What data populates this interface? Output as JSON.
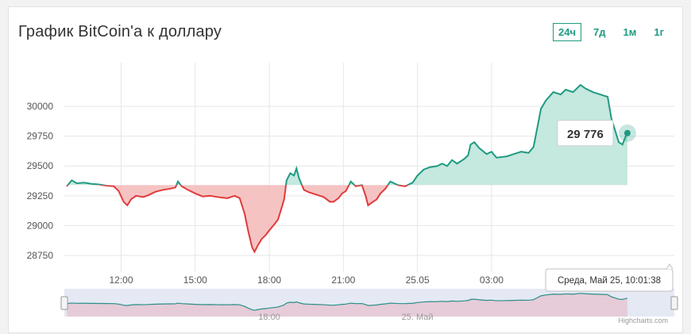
{
  "header": {
    "title": "График BitCoin'а к доллару",
    "ranges": [
      {
        "label": "24ч",
        "active": true
      },
      {
        "label": "7д",
        "active": false
      },
      {
        "label": "1м",
        "active": false
      },
      {
        "label": "1г",
        "active": false
      }
    ]
  },
  "colors": {
    "up_line": "#1f9a82",
    "up_fill": "#bfe6dc",
    "down_line": "#e03b3b",
    "down_fill": "#f5bcbc",
    "grid": "#e6e6e6",
    "navigator_fill": "#d9dff0",
    "navigator_line": "#2a8f86"
  },
  "chart_data": {
    "type": "area",
    "baseline": 29340,
    "ylim": [
      28650,
      30300
    ],
    "y_ticks": [
      28750,
      29000,
      29250,
      29500,
      29750,
      30000
    ],
    "x_range": [
      9.7,
      34.4
    ],
    "x_ticks": [
      {
        "x": 12,
        "label": "12:00"
      },
      {
        "x": 15,
        "label": "15:00"
      },
      {
        "x": 18,
        "label": "18:00"
      },
      {
        "x": 21,
        "label": "21:00"
      },
      {
        "x": 24,
        "label": "25.05"
      },
      {
        "x": 27,
        "label": "03:00"
      }
    ],
    "series": [
      {
        "values": [
          [
            9.8,
            29330
          ],
          [
            10.0,
            29380
          ],
          [
            10.2,
            29355
          ],
          [
            10.5,
            29360
          ],
          [
            10.8,
            29350
          ],
          [
            11.1,
            29345
          ],
          [
            11.4,
            29335
          ],
          [
            11.7,
            29330
          ],
          [
            11.9,
            29290
          ],
          [
            12.1,
            29200
          ],
          [
            12.25,
            29170
          ],
          [
            12.4,
            29220
          ],
          [
            12.6,
            29250
          ],
          [
            12.9,
            29240
          ],
          [
            13.1,
            29255
          ],
          [
            13.4,
            29285
          ],
          [
            13.7,
            29300
          ],
          [
            14.0,
            29310
          ],
          [
            14.2,
            29320
          ],
          [
            14.3,
            29370
          ],
          [
            14.45,
            29330
          ],
          [
            14.7,
            29300
          ],
          [
            15.0,
            29270
          ],
          [
            15.3,
            29245
          ],
          [
            15.6,
            29250
          ],
          [
            15.9,
            29240
          ],
          [
            16.1,
            29235
          ],
          [
            16.3,
            29230
          ],
          [
            16.6,
            29250
          ],
          [
            16.8,
            29230
          ],
          [
            17.0,
            29100
          ],
          [
            17.15,
            28950
          ],
          [
            17.3,
            28820
          ],
          [
            17.4,
            28780
          ],
          [
            17.55,
            28840
          ],
          [
            17.7,
            28890
          ],
          [
            17.85,
            28920
          ],
          [
            18.0,
            28960
          ],
          [
            18.2,
            29010
          ],
          [
            18.35,
            29050
          ],
          [
            18.5,
            29150
          ],
          [
            18.6,
            29220
          ],
          [
            18.7,
            29380
          ],
          [
            18.85,
            29440
          ],
          [
            19.0,
            29420
          ],
          [
            19.1,
            29480
          ],
          [
            19.2,
            29400
          ],
          [
            19.4,
            29300
          ],
          [
            19.6,
            29280
          ],
          [
            19.9,
            29260
          ],
          [
            20.2,
            29240
          ],
          [
            20.45,
            29200
          ],
          [
            20.6,
            29200
          ],
          [
            20.8,
            29230
          ],
          [
            20.95,
            29270
          ],
          [
            21.1,
            29290
          ],
          [
            21.3,
            29370
          ],
          [
            21.5,
            29330
          ],
          [
            21.75,
            29340
          ],
          [
            21.9,
            29250
          ],
          [
            22.0,
            29170
          ],
          [
            22.2,
            29200
          ],
          [
            22.35,
            29220
          ],
          [
            22.5,
            29270
          ],
          [
            22.7,
            29310
          ],
          [
            22.9,
            29370
          ],
          [
            23.2,
            29340
          ],
          [
            23.5,
            29330
          ],
          [
            23.8,
            29360
          ],
          [
            24.0,
            29420
          ],
          [
            24.25,
            29470
          ],
          [
            24.5,
            29490
          ],
          [
            24.8,
            29500
          ],
          [
            25.0,
            29520
          ],
          [
            25.2,
            29500
          ],
          [
            25.4,
            29550
          ],
          [
            25.6,
            29520
          ],
          [
            25.9,
            29560
          ],
          [
            26.05,
            29590
          ],
          [
            26.15,
            29680
          ],
          [
            26.3,
            29700
          ],
          [
            26.5,
            29650
          ],
          [
            26.8,
            29600
          ],
          [
            27.0,
            29620
          ],
          [
            27.2,
            29570
          ],
          [
            27.6,
            29580
          ],
          [
            27.9,
            29600
          ],
          [
            28.2,
            29620
          ],
          [
            28.5,
            29610
          ],
          [
            28.7,
            29660
          ],
          [
            28.85,
            29820
          ],
          [
            29.0,
            29980
          ],
          [
            29.2,
            30050
          ],
          [
            29.5,
            30120
          ],
          [
            29.8,
            30100
          ],
          [
            30.0,
            30140
          ],
          [
            30.3,
            30120
          ],
          [
            30.6,
            30180
          ],
          [
            30.8,
            30150
          ],
          [
            31.1,
            30120
          ],
          [
            31.4,
            30100
          ],
          [
            31.7,
            30080
          ],
          [
            31.85,
            29900
          ],
          [
            32.0,
            29800
          ],
          [
            32.15,
            29700
          ],
          [
            32.3,
            29680
          ],
          [
            32.45,
            29760
          ],
          [
            32.5,
            29776
          ]
        ]
      }
    ],
    "last_value_label": "29 776",
    "navigator_ticks": [
      {
        "x": 18,
        "label": "18:00"
      },
      {
        "x": 24,
        "label": "25. Май"
      }
    ],
    "tooltip": "Среда, Май 25, 10:01:38",
    "credits": "Highcharts.com"
  }
}
